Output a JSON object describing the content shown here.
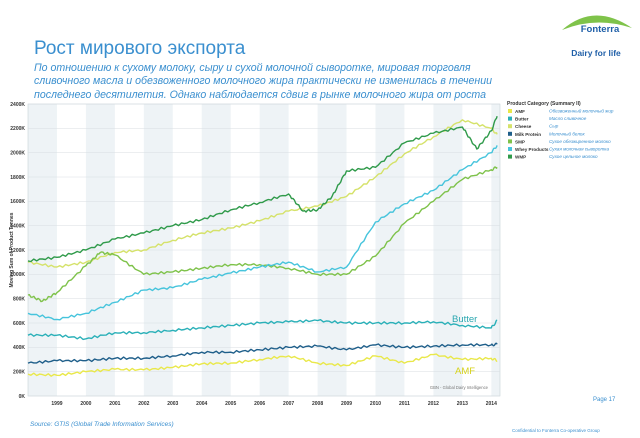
{
  "slide": {
    "title": "Рост мирового экспорта",
    "subtitle": "По отношению к сухому молоку, сыру и сухой молочной сыворотке, мировая торговля сливочного масла и обезвоженного молочного жира практически не изменилась в течении последнего десятилетия. Однако наблюдается сдвиг в рынке молочного жира от роста",
    "page": "Page 17",
    "source": "Source: GTIS (Global Trade Information Services)",
    "confidential": "Confidential to Fonterra Co-operative Group"
  },
  "brand": {
    "name": "Fonterra",
    "tagline": "Dairy for life",
    "color": "#1f5fa8"
  },
  "chart_data": {
    "type": "line",
    "ylabel": "Moving Sum of Product Tonnes",
    "ylim": [
      0,
      2400
    ],
    "yticks": [
      0,
      200,
      400,
      600,
      800,
      1000,
      1200,
      1400,
      1600,
      1800,
      2000,
      2200,
      2400
    ],
    "ytick_labels": [
      "0K",
      "200K",
      "400K",
      "600K",
      "800K",
      "1000K",
      "1200K",
      "1400K",
      "1600K",
      "1800K",
      "2000K",
      "2200K",
      "2400K"
    ],
    "xlim": [
      1998.0,
      2014.3
    ],
    "x_labels": [
      "1999",
      "2000",
      "2001",
      "2002",
      "2003",
      "2004",
      "2005",
      "2006",
      "2007",
      "2008",
      "2009",
      "2010",
      "2011",
      "2012",
      "2013",
      "2014"
    ],
    "x_label_positions": [
      1999,
      2000,
      2001,
      2002,
      2003,
      2004,
      2005,
      2006,
      2007,
      2008,
      2009,
      2010,
      2011,
      2012,
      2013,
      2014
    ],
    "legend_title": "Product Category (Summary II)",
    "watermark": "GBN - Global Dairy Intelligence",
    "annotations": [
      {
        "text": "Butter",
        "color": "#2aa7b0"
      },
      {
        "text": "AMF",
        "color": "#d6d21a"
      }
    ],
    "series": [
      {
        "name": "AMF",
        "ru": "Обезвоженный молочный жир",
        "color": "#e9e84a",
        "x": [
          1998.0,
          1999.0,
          2000.0,
          2001.0,
          2002.0,
          2003.0,
          2004.0,
          2005.0,
          2006.0,
          2007.0,
          2008.0,
          2009.0,
          2010.0,
          2011.0,
          2012.0,
          2013.0,
          2014.0,
          2014.2
        ],
        "y": [
          180,
          170,
          200,
          220,
          215,
          235,
          265,
          270,
          300,
          330,
          270,
          250,
          330,
          270,
          340,
          300,
          310,
          290
        ]
      },
      {
        "name": "Butter",
        "ru": "Масло сливочное",
        "color": "#2ab0b8",
        "x": [
          1998.0,
          1999.0,
          2000.0,
          2001.0,
          2002.0,
          2003.0,
          2004.0,
          2005.0,
          2006.0,
          2007.0,
          2008.0,
          2009.0,
          2010.0,
          2011.0,
          2012.0,
          2013.0,
          2014.0,
          2014.2
        ],
        "y": [
          500,
          500,
          470,
          520,
          520,
          540,
          560,
          580,
          600,
          610,
          620,
          600,
          600,
          600,
          610,
          580,
          560,
          620
        ]
      },
      {
        "name": "Cheese",
        "ru": "Сыр",
        "color": "#d5e26a",
        "x": [
          1998.0,
          1999.0,
          2000.0,
          2001.0,
          2002.0,
          2003.0,
          2004.0,
          2005.0,
          2006.0,
          2007.0,
          2008.0,
          2009.0,
          2010.0,
          2011.0,
          2012.0,
          2013.0,
          2014.0,
          2014.2
        ],
        "y": [
          1100,
          1060,
          1100,
          1180,
          1200,
          1280,
          1340,
          1380,
          1440,
          1520,
          1560,
          1640,
          1800,
          1990,
          2130,
          2270,
          2200,
          2150
        ]
      },
      {
        "name": "Milk Protein",
        "ru": "Молочный белок",
        "color": "#1f5f8a",
        "x": [
          1998.0,
          1999.0,
          2000.0,
          2001.0,
          2002.0,
          2003.0,
          2004.0,
          2005.0,
          2006.0,
          2007.0,
          2008.0,
          2009.0,
          2010.0,
          2011.0,
          2012.0,
          2013.0,
          2014.0,
          2014.2
        ],
        "y": [
          270,
          290,
          290,
          310,
          310,
          330,
          360,
          360,
          380,
          400,
          410,
          380,
          420,
          400,
          410,
          420,
          420,
          425
        ]
      },
      {
        "name": "SMP",
        "ru": "Сухое обезжиренное молоко",
        "color": "#7ec24a",
        "x": [
          1998.0,
          1998.5,
          1999.0,
          2000.0,
          2000.5,
          2001.0,
          2002.0,
          2003.0,
          2004.0,
          2005.0,
          2006.0,
          2007.0,
          2008.0,
          2009.0,
          2010.0,
          2011.0,
          2012.0,
          2013.0,
          2014.0,
          2014.2
        ],
        "y": [
          830,
          780,
          850,
          1070,
          1180,
          1160,
          1000,
          1020,
          1050,
          1080,
          1080,
          1050,
          1000,
          1000,
          1150,
          1420,
          1600,
          1780,
          1860,
          1880
        ]
      },
      {
        "name": "Whey Products",
        "ru": "Сухая молочная сыворотка",
        "color": "#46c4dc",
        "x": [
          1998.0,
          1999.0,
          2000.0,
          2001.0,
          2002.0,
          2003.0,
          2004.0,
          2005.0,
          2006.0,
          2007.0,
          2008.0,
          2009.0,
          2010.0,
          2011.0,
          2012.0,
          2013.0,
          2014.0,
          2014.2
        ],
        "y": [
          680,
          630,
          680,
          770,
          870,
          890,
          960,
          1010,
          1060,
          1100,
          1020,
          1060,
          1430,
          1580,
          1690,
          1860,
          2000,
          2060
        ]
      },
      {
        "name": "WMP",
        "ru": "Сухое цельное молоко",
        "color": "#2f9a4a",
        "x": [
          1998.0,
          1999.0,
          2000.0,
          2001.0,
          2002.0,
          2003.0,
          2004.0,
          2005.0,
          2006.0,
          2007.0,
          2007.5,
          2008.0,
          2008.5,
          2009.0,
          2010.0,
          2011.0,
          2012.0,
          2013.0,
          2013.5,
          2014.0,
          2014.2
        ],
        "y": [
          1110,
          1140,
          1200,
          1290,
          1340,
          1400,
          1450,
          1530,
          1590,
          1660,
          1520,
          1530,
          1640,
          1850,
          1880,
          2080,
          2160,
          2210,
          2030,
          2180,
          2300
        ]
      }
    ]
  }
}
